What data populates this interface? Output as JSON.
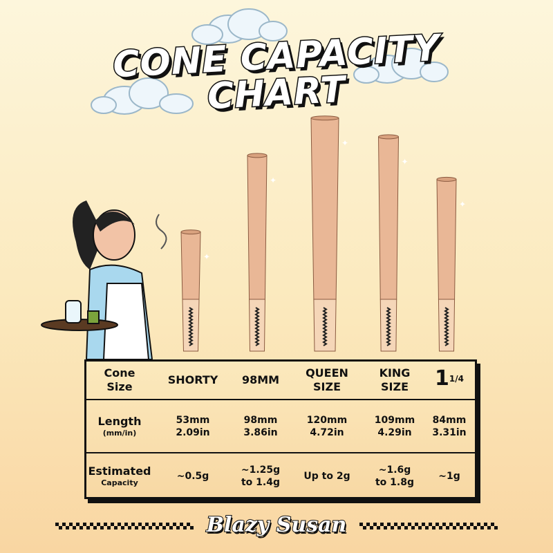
{
  "title": {
    "line1": "CONE CAPACITY",
    "line2": "CHART"
  },
  "colors": {
    "cone": "#e9b796",
    "filter": "#f5d6b8",
    "background": "#fbe9bd",
    "outline": "#111111"
  },
  "chart_data": {
    "type": "table",
    "categories": [
      "SHORTY",
      "98MM",
      "QUEEN SIZE",
      "KING SIZE",
      "1 1/4"
    ],
    "length_mm": [
      53,
      98,
      120,
      109,
      84
    ],
    "length_in": [
      2.09,
      3.86,
      4.72,
      4.29,
      3.31
    ]
  },
  "table": {
    "header": {
      "label_line1": "Cone",
      "label_line2": "Size",
      "cols": [
        [
          "SHORTY",
          ""
        ],
        [
          "98MM",
          ""
        ],
        [
          "QUEEN",
          "SIZE"
        ],
        [
          "KING",
          "SIZE"
        ]
      ],
      "last_main": "1",
      "last_sup": "1/4"
    },
    "length": {
      "label": "Length",
      "sub": "(mm/in)",
      "cols": [
        [
          "53mm",
          "2.09in"
        ],
        [
          "98mm",
          "3.86in"
        ],
        [
          "120mm",
          "4.72in"
        ],
        [
          "109mm",
          "4.29in"
        ],
        [
          "84mm",
          "3.31in"
        ]
      ]
    },
    "capacity": {
      "label": "Estimated",
      "sub": "Capacity",
      "cols": [
        [
          "~0.5g",
          ""
        ],
        [
          "~1.25g",
          "to 1.4g"
        ],
        [
          "Up to 2g",
          ""
        ],
        [
          "~1.6g",
          "to 1.8g"
        ],
        [
          "~1g",
          ""
        ]
      ]
    }
  },
  "brand": "Blazy Susan",
  "icons": [
    "cloud-icon",
    "waitress-illustration",
    "cone-icon",
    "sparkle-icon"
  ]
}
